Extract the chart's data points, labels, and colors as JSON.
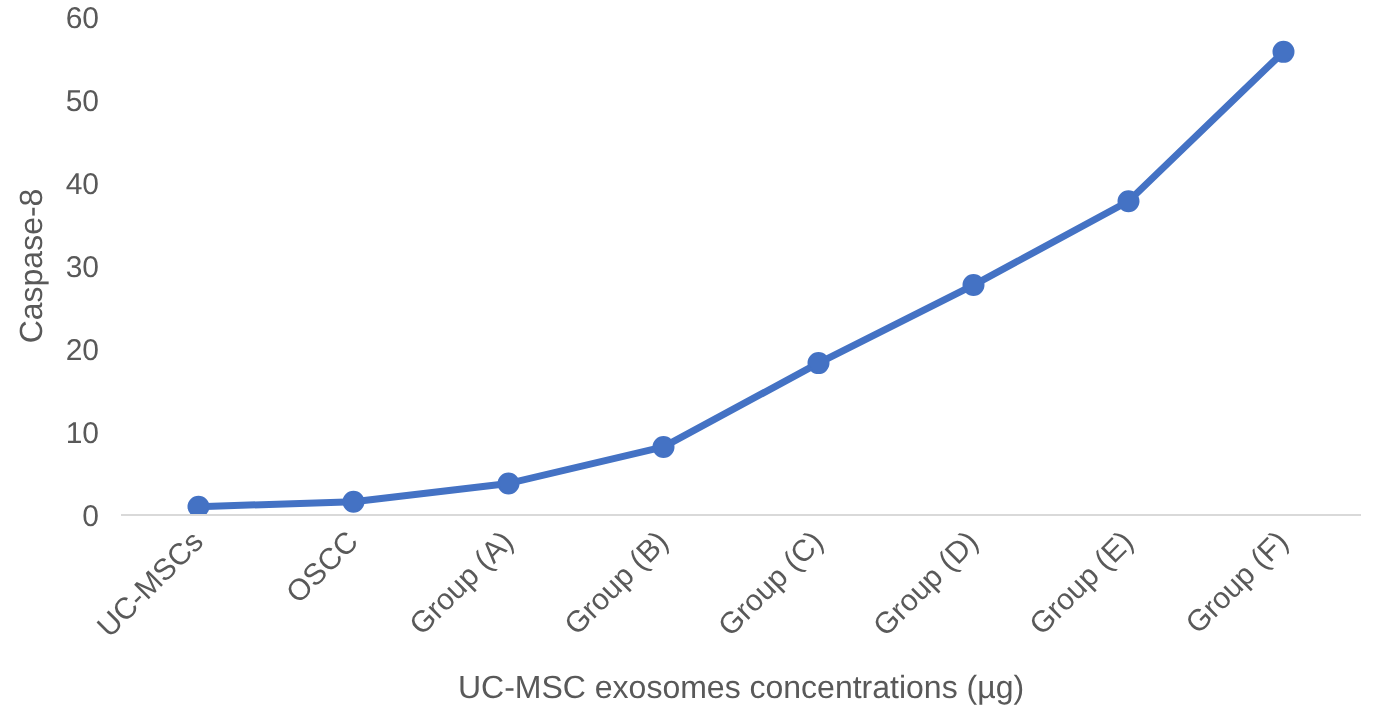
{
  "chart_data": {
    "type": "line",
    "xlabel": "UC-MSC exosomes concentrations (µg)",
    "ylabel": "Caspase-8",
    "categories": [
      "UC-MSCs",
      "OSCC",
      "Group (A)",
      "Group (B)",
      "Group (C)",
      "Group (D)",
      "Group (E)",
      "Group (F)"
    ],
    "series": [
      {
        "color": "#4472c4",
        "values": [
          1,
          1.6,
          3.8,
          8.2,
          18.3,
          27.7,
          37.8,
          55.8
        ]
      }
    ],
    "ylim": [
      0,
      60
    ],
    "yticks": [
      0,
      10,
      20,
      30,
      40,
      50,
      60
    ],
    "marker": "circle",
    "line_style": "solid"
  }
}
